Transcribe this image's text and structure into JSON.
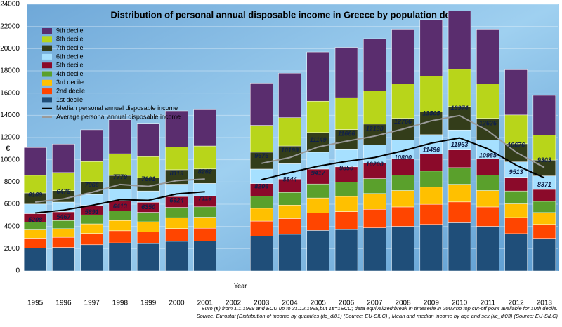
{
  "chart_data": {
    "type": "stacked_bar",
    "title": "Distribution of personal annual disposable income in Greece by population decile",
    "y_label": "€",
    "x_label": "Year",
    "categories": [
      "1995",
      "1996",
      "1997",
      "1998",
      "1999",
      "2000",
      "2001",
      "2002",
      "2003",
      "2004",
      "2005",
      "2006",
      "2007",
      "2008",
      "2009",
      "2010",
      "2011",
      "2012",
      "2013"
    ],
    "ylim": [
      0,
      24000
    ],
    "yticks": [
      0,
      2000,
      4000,
      6000,
      8000,
      10000,
      12000,
      14000,
      16000,
      18000,
      20000,
      22000,
      24000
    ],
    "grid": true,
    "series": [
      {
        "name": "1st decile",
        "color": "#1f4e79",
        "values": [
          2050,
          2110,
          2350,
          2520,
          2460,
          2660,
          2680,
          null,
          3130,
          3290,
          3640,
          3720,
          3870,
          4010,
          4180,
          4330,
          4010,
          3350,
          2920
        ]
      },
      {
        "name": "2nd decile",
        "color": "#ff4500",
        "values": [
          890,
          910,
          1020,
          1090,
          1060,
          1150,
          1160,
          null,
          1350,
          1420,
          1580,
          1610,
          1670,
          1740,
          1810,
          1870,
          1740,
          1450,
          1260
        ]
      },
      {
        "name": "3rd decile",
        "color": "#ffc000",
        "values": [
          750,
          780,
          860,
          920,
          900,
          980,
          990,
          null,
          1150,
          1210,
          1340,
          1370,
          1420,
          1480,
          1540,
          1590,
          1480,
          1230,
          1070
        ]
      },
      {
        "name": "4th decile",
        "color": "#5aa02c",
        "values": [
          710,
          730,
          810,
          870,
          850,
          920,
          930,
          null,
          1080,
          1140,
          1260,
          1290,
          1340,
          1390,
          1450,
          1500,
          1390,
          1160,
          1010
        ]
      },
      {
        "name": "5th decile",
        "color": "#8b0a2a",
        "values": [
          750,
          780,
          860,
          920,
          900,
          980,
          990,
          null,
          1150,
          1210,
          1340,
          1370,
          1420,
          1480,
          1540,
          1590,
          1480,
          1230,
          1070
        ]
      },
      {
        "name": "6th decile",
        "color": "#a6e0ff",
        "values": [
          860,
          880,
          980,
          1050,
          1020,
          1110,
          1120,
          null,
          1300,
          1370,
          1520,
          1550,
          1610,
          1670,
          1740,
          1800,
          1670,
          1390,
          1220
        ]
      },
      {
        "name": "7th decile",
        "color": "#333d1a",
        "values": [
          1000,
          1030,
          1140,
          1220,
          1200,
          1300,
          1300,
          null,
          1520,
          1600,
          1770,
          1810,
          1880,
          1950,
          2030,
          2110,
          1950,
          1630,
          1420
        ]
      },
      {
        "name": "8th decile",
        "color": "#b8d51a",
        "values": [
          1590,
          1630,
          1820,
          1950,
          1900,
          2060,
          2070,
          null,
          2420,
          2550,
          2820,
          2870,
          2990,
          3100,
          3230,
          3350,
          3100,
          2590,
          2260
        ]
      },
      {
        "name": "9th decile",
        "color": "#5a2d6e",
        "values": [
          2500,
          2560,
          2860,
          3060,
          2990,
          3240,
          3260,
          null,
          3800,
          4010,
          4430,
          4520,
          4700,
          4880,
          5090,
          5270,
          4880,
          4070,
          3560
        ]
      }
    ],
    "lines": [
      {
        "name": "Median personal annual disposable income",
        "color": "#000000",
        "values": [
          5208,
          5467,
          5891,
          6413,
          6350,
          6924,
          7119,
          null,
          8206,
          8844,
          9417,
          9850,
          10200,
          10800,
          11496,
          11963,
          10985,
          9513,
          8371
        ]
      },
      {
        "name": "Average personal annual disposable income",
        "color": "#9a9a9a",
        "values": [
          6189,
          6478,
          7066,
          7779,
          7601,
          8119,
          8262,
          null,
          9676,
          10199,
          11149,
          11666,
          12130,
          12766,
          13505,
          13974,
          12626,
          10676,
          9303
        ]
      }
    ],
    "notes": [
      "Euro (€) from 1.1.1999 and ECU up to 31.12.1998,but 1€=1ECU; data equivalized;break in timeserie in 2002;no top cut-off point available for 10th decile.",
      "Source: Eurostat (Distribution of income by quantiles (ilc_di01) (Source: EU-SILC) ,  Mean and median income by age and sex (ilc_di03) (Source: EU-SILC)"
    ]
  }
}
